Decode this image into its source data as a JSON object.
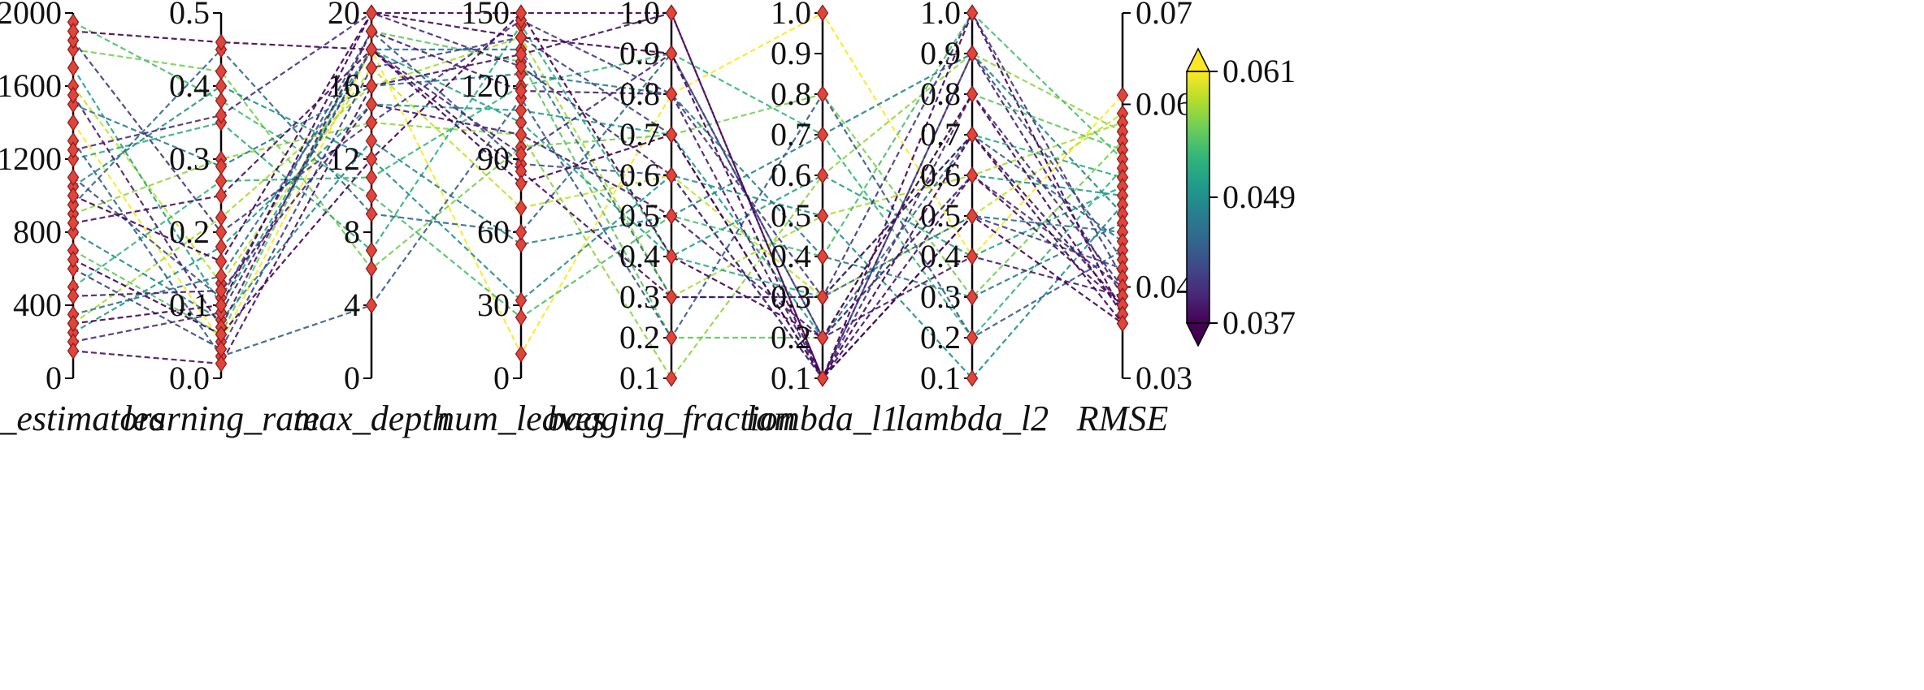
{
  "chart_data": {
    "type": "parallel_coordinates",
    "title": "",
    "line_style": "dashed",
    "marker": "diamond",
    "marker_color": "#e0453c",
    "marker_edge_color": "#8b1a1a",
    "axes": [
      {
        "name": "n_estimators",
        "range": [
          0,
          2000
        ],
        "ticks": [
          0,
          400,
          800,
          1200,
          1600,
          2000
        ],
        "tick_labels": [
          "0",
          "400",
          "800",
          "1200",
          "1600",
          "2000"
        ],
        "tick_side": "left"
      },
      {
        "name": "learning_rate",
        "range": [
          0.0,
          0.5
        ],
        "ticks": [
          0.0,
          0.1,
          0.2,
          0.3,
          0.4,
          0.5
        ],
        "tick_labels": [
          "0.0",
          "0.1",
          "0.2",
          "0.3",
          "0.4",
          "0.5"
        ],
        "tick_side": "left"
      },
      {
        "name": "max_depth",
        "range": [
          0,
          20
        ],
        "ticks": [
          0,
          4,
          8,
          12,
          16,
          20
        ],
        "tick_labels": [
          "0",
          "4",
          "8",
          "12",
          "16",
          "20"
        ],
        "tick_side": "left"
      },
      {
        "name": "num_leaves",
        "range": [
          0,
          150
        ],
        "ticks": [
          0,
          30,
          60,
          90,
          120,
          150
        ],
        "tick_labels": [
          "0",
          "30",
          "60",
          "90",
          "120",
          "150"
        ],
        "tick_side": "left"
      },
      {
        "name": "bagging_fraction",
        "range": [
          0.1,
          1.0
        ],
        "ticks": [
          0.1,
          0.2,
          0.3,
          0.4,
          0.5,
          0.6,
          0.7,
          0.8,
          0.9,
          1.0
        ],
        "tick_labels": [
          "0.1",
          "0.2",
          "0.3",
          "0.4",
          "0.5",
          "0.6",
          "0.7",
          "0.8",
          "0.9",
          "1.0"
        ],
        "tick_side": "left"
      },
      {
        "name": "lambda_l1",
        "range": [
          0.1,
          1.0
        ],
        "ticks": [
          0.1,
          0.2,
          0.3,
          0.4,
          0.5,
          0.6,
          0.7,
          0.8,
          0.9,
          1.0
        ],
        "tick_labels": [
          "0.1",
          "0.2",
          "0.3",
          "0.4",
          "0.5",
          "0.6",
          "0.7",
          "0.8",
          "0.9",
          "1.0"
        ],
        "tick_side": "left"
      },
      {
        "name": "lambda_l2",
        "range": [
          0.1,
          1.0
        ],
        "ticks": [
          0.1,
          0.2,
          0.3,
          0.4,
          0.5,
          0.6,
          0.7,
          0.8,
          0.9,
          1.0
        ],
        "tick_labels": [
          "0.1",
          "0.2",
          "0.3",
          "0.4",
          "0.5",
          "0.6",
          "0.7",
          "0.8",
          "0.9",
          "1.0"
        ],
        "tick_side": "left"
      },
      {
        "name": "RMSE",
        "range": [
          0.03,
          0.07
        ],
        "ticks": [
          0.03,
          0.04,
          0.06,
          0.07
        ],
        "tick_labels": [
          "0.03",
          "0.04",
          "0.06",
          "0.07"
        ],
        "tick_side": "right"
      }
    ],
    "colorbar": {
      "colormap": "viridis",
      "range": [
        0.037,
        0.061
      ],
      "ticks": [
        0.037,
        0.049,
        0.061
      ],
      "tick_labels": [
        "0.037",
        "0.049",
        "0.061"
      ],
      "extend": "both",
      "colors": [
        "#440154",
        "#482878",
        "#3e4989",
        "#31688e",
        "#26828e",
        "#1f9e89",
        "#35b779",
        "#6ece58",
        "#b5de2b",
        "#fde725"
      ]
    },
    "trials": [
      [
        1400,
        0.05,
        18,
        10,
        0.8,
        1.0,
        0.4,
        0.061
      ],
      [
        1600,
        0.13,
        17,
        70,
        0.6,
        0.3,
        0.5,
        0.059
      ],
      [
        300,
        0.22,
        16,
        140,
        0.3,
        0.5,
        0.6,
        0.058
      ],
      [
        900,
        0.3,
        14,
        100,
        0.1,
        0.6,
        0.9,
        0.057
      ],
      [
        1800,
        0.42,
        6,
        95,
        0.7,
        0.8,
        0.3,
        0.056
      ],
      [
        700,
        0.06,
        19,
        130,
        0.2,
        0.2,
        0.8,
        0.055
      ],
      [
        1950,
        0.38,
        10,
        25,
        0.5,
        0.4,
        1.0,
        0.054
      ],
      [
        500,
        0.27,
        11,
        120,
        0.9,
        0.7,
        0.2,
        0.053
      ],
      [
        1200,
        0.35,
        7,
        145,
        0.4,
        0.3,
        0.7,
        0.052
      ],
      [
        1700,
        0.1,
        18,
        105,
        0.4,
        0.6,
        0.4,
        0.051
      ],
      [
        250,
        0.18,
        15,
        110,
        0.7,
        0.2,
        0.6,
        0.05
      ],
      [
        1050,
        0.4,
        12,
        32,
        0.6,
        0.5,
        0.1,
        0.049
      ],
      [
        800,
        0.08,
        13,
        55,
        0.5,
        0.7,
        0.9,
        0.048
      ],
      [
        1500,
        0.29,
        16,
        125,
        0.8,
        0.4,
        0.3,
        0.047
      ],
      [
        350,
        0.14,
        18,
        135,
        0.3,
        0.3,
        0.5,
        0.046
      ],
      [
        950,
        0.45,
        9,
        60,
        0.9,
        0.2,
        0.7,
        0.045
      ],
      [
        1300,
        0.03,
        4,
        115,
        0.2,
        0.8,
        0.2,
        0.044
      ],
      [
        1100,
        0.11,
        19,
        88,
        0.6,
        0.1,
        0.9,
        0.043
      ],
      [
        600,
        0.04,
        17,
        140,
        0.7,
        0.1,
        0.5,
        0.042
      ],
      [
        1850,
        0.2,
        14,
        147,
        0.8,
        0.3,
        1.0,
        0.041
      ],
      [
        200,
        0.09,
        18,
        92,
        0.9,
        0.2,
        0.6,
        0.04
      ],
      [
        1250,
        0.36,
        20,
        128,
        0.6,
        0.1,
        0.8,
        0.04
      ],
      [
        450,
        0.12,
        15,
        100,
        0.5,
        0.2,
        0.4,
        0.039
      ],
      [
        1550,
        0.07,
        19,
        118,
        0.8,
        0.1,
        0.9,
        0.039
      ],
      [
        850,
        0.25,
        18,
        85,
        0.3,
        0.3,
        0.7,
        0.038
      ],
      [
        150,
        0.02,
        16,
        133,
        1.0,
        0.1,
        0.6,
        0.038
      ],
      [
        1000,
        0.16,
        20,
        140,
        0.9,
        0.1,
        1.0,
        0.037
      ],
      [
        650,
        0.06,
        12,
        150,
        0.4,
        0.2,
        0.8,
        0.037
      ],
      [
        1900,
        0.46,
        18,
        80,
        0.7,
        0.1,
        0.5,
        0.036
      ],
      [
        300,
        0.1,
        20,
        150,
        1.0,
        0.1,
        0.7,
        0.036
      ]
    ]
  }
}
